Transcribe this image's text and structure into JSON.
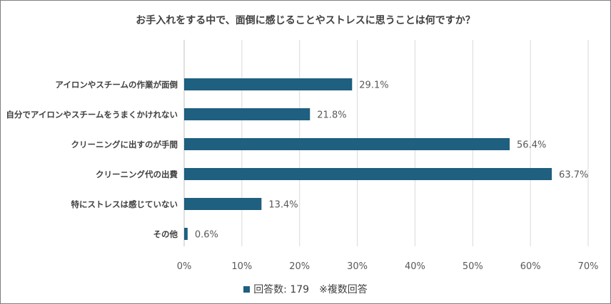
{
  "chart_data": {
    "type": "bar",
    "orientation": "horizontal",
    "title": "お手入れをする中で、面倒に感じることやストレスに思うことは何ですか？",
    "categories": [
      "アイロンやスチームの作業が面倒",
      "自分でアイロンやスチームをうまくかけれない",
      "クリーニングに出すのが手間",
      "クリーニング代の出費",
      "特にストレスは感じていない",
      "その他"
    ],
    "values": [
      29.1,
      21.8,
      56.4,
      63.7,
      13.4,
      0.6
    ],
    "value_labels": [
      "29.1%",
      "21.8%",
      "56.4%",
      "63.7%",
      "13.4%",
      "0.6%"
    ],
    "xlim": [
      0,
      70
    ],
    "x_ticks": [
      "0%",
      "10%",
      "20%",
      "30%",
      "40%",
      "50%",
      "60%",
      "70%"
    ],
    "grid": "vertical",
    "bar_color": "#1f5f7f",
    "legend": {
      "position": "bottom",
      "label": "回答数:  179",
      "note": "※複数回答"
    }
  }
}
